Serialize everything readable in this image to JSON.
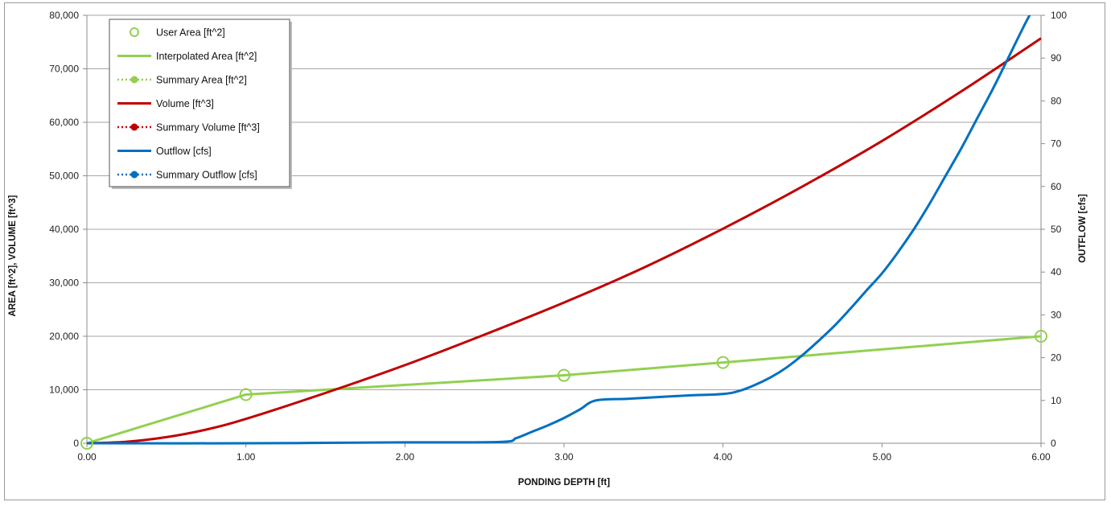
{
  "chart_data": {
    "type": "line",
    "xlabel": "PONDING DEPTH [ft]",
    "ylabel": "AREA [ft^2], VOLUME [ft^3]",
    "y2label": "OUTFLOW [cfs]",
    "xlim": [
      0,
      6
    ],
    "ylim": [
      0,
      80000
    ],
    "y2lim": [
      0,
      100
    ],
    "x_ticks": [
      "0.00",
      "1.00",
      "2.00",
      "3.00",
      "4.00",
      "5.00",
      "6.00"
    ],
    "y_ticks": [
      "0",
      "10,000",
      "20,000",
      "30,000",
      "40,000",
      "50,000",
      "60,000",
      "70,000",
      "80,000"
    ],
    "y2_ticks": [
      "0",
      "10",
      "20",
      "30",
      "40",
      "50",
      "60",
      "70",
      "80",
      "90",
      "100"
    ],
    "grid": "horizontal",
    "legend_position": "top-left",
    "legend": [
      {
        "label": "User Area [ft^2]",
        "style": "marker-hollow",
        "color": "#92d050"
      },
      {
        "label": "Interpolated Area [ft^2]",
        "style": "line",
        "color": "#92d050"
      },
      {
        "label": "Summary Area [ft^2]",
        "style": "dotted-marker",
        "color": "#92d050"
      },
      {
        "label": "Volume [ft^3]",
        "style": "line",
        "color": "#c00000"
      },
      {
        "label": "Summary Volume [ft^3]",
        "style": "dotted-marker",
        "color": "#c00000"
      },
      {
        "label": "Outflow [cfs]",
        "style": "line",
        "color": "#0070c0"
      },
      {
        "label": "Summary Outflow [cfs]",
        "style": "dotted-marker",
        "color": "#0070c0"
      }
    ],
    "series": [
      {
        "name": "User Area [ft^2]",
        "axis": "left",
        "color": "#92d050",
        "x": [
          0,
          1,
          3,
          4,
          6
        ],
        "y": [
          0,
          9100,
          12700,
          15100,
          20000
        ]
      },
      {
        "name": "Interpolated Area [ft^2]",
        "axis": "left",
        "color": "#92d050",
        "x": [
          0,
          1,
          3,
          4,
          6
        ],
        "y": [
          0,
          9100,
          12700,
          15100,
          20000
        ]
      },
      {
        "name": "Volume [ft^3]",
        "axis": "left",
        "color": "#c00000",
        "x": [
          0,
          0.25,
          0.5,
          0.75,
          1,
          1.5,
          2,
          2.5,
          3,
          3.5,
          4,
          4.5,
          5,
          5.5,
          6
        ],
        "y": [
          0,
          280,
          1140,
          2560,
          4550,
          9400,
          14600,
          20300,
          26300,
          32800,
          40100,
          48000,
          56500,
          65800,
          75700
        ]
      },
      {
        "name": "Outflow [cfs]",
        "axis": "right",
        "color": "#0070c0",
        "x": [
          0,
          1,
          2,
          2.6,
          2.7,
          2.8,
          2.9,
          3.0,
          3.1,
          3.2,
          3.4,
          3.6,
          3.8,
          4.0,
          4.1,
          4.2,
          4.3,
          4.4,
          4.5,
          4.6,
          4.7,
          4.8,
          4.9,
          5.0,
          5.1,
          5.2,
          5.3,
          5.4,
          5.5,
          5.6,
          5.7,
          5.8,
          5.9,
          6.0
        ],
        "y": [
          0,
          0,
          0.2,
          0.3,
          1.2,
          2.7,
          4.2,
          5.9,
          7.9,
          10.0,
          10.4,
          10.8,
          11.2,
          11.5,
          12.2,
          13.6,
          15.4,
          17.7,
          20.6,
          23.9,
          27.4,
          31.4,
          35.6,
          39.7,
          44.6,
          50.0,
          56.0,
          62.5,
          69.0,
          76.0,
          83.0,
          90.5,
          98.0,
          105.0
        ]
      }
    ]
  }
}
